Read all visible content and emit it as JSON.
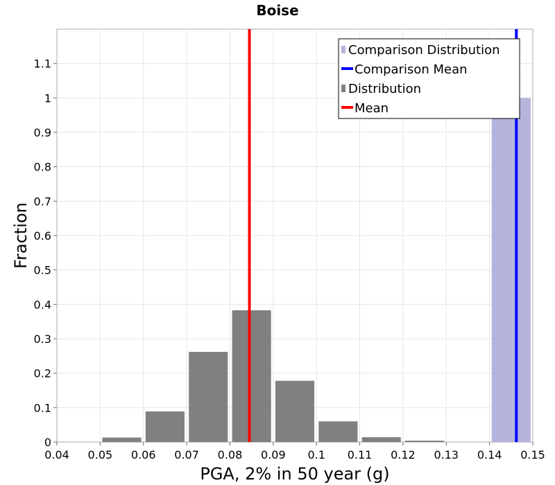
{
  "chart_data": {
    "type": "bar",
    "title": "Boise",
    "xlabel": "PGA, 2% in 50 year (g)",
    "ylabel": "Fraction",
    "xlim": [
      0.04,
      0.15
    ],
    "ylim": [
      0,
      1.2
    ],
    "grid": true,
    "legend_position": "top-right",
    "x_ticks": [
      "0.04",
      "0.05",
      "0.06",
      "0.07",
      "0.08",
      "0.09",
      "0.1",
      "0.11",
      "0.12",
      "0.13",
      "0.14",
      "0.15"
    ],
    "y_ticks": [
      "0",
      "0.1",
      "0.2",
      "0.3",
      "0.4",
      "0.5",
      "0.6",
      "0.7",
      "0.8",
      "0.9",
      "1",
      "1.1"
    ],
    "series": [
      {
        "name": "Comparison Distribution",
        "kind": "bars",
        "color": "#b4b4dc",
        "bin_width": 0.009,
        "bins": [
          {
            "x": 0.145,
            "value": 1.0
          }
        ]
      },
      {
        "name": "Comparison Mean",
        "kind": "vline",
        "color": "#0000ff",
        "x": 0.1462
      },
      {
        "name": "Distribution",
        "kind": "bars",
        "color": "#808080",
        "bin_width": 0.009,
        "bins": [
          {
            "x": 0.045,
            "value": 0.0
          },
          {
            "x": 0.055,
            "value": 0.013
          },
          {
            "x": 0.065,
            "value": 0.089
          },
          {
            "x": 0.075,
            "value": 0.262
          },
          {
            "x": 0.085,
            "value": 0.383
          },
          {
            "x": 0.095,
            "value": 0.178
          },
          {
            "x": 0.105,
            "value": 0.06
          },
          {
            "x": 0.115,
            "value": 0.014
          },
          {
            "x": 0.125,
            "value": 0.004
          },
          {
            "x": 0.135,
            "value": 0.0
          }
        ]
      },
      {
        "name": "Mean",
        "kind": "vline",
        "color": "#ff0000",
        "x": 0.0845
      }
    ]
  }
}
